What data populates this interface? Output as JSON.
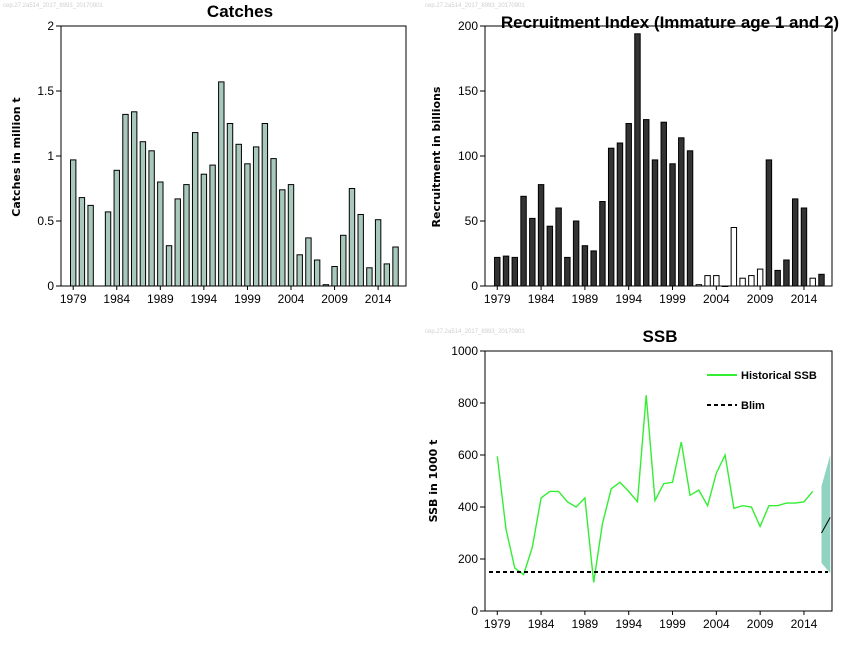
{
  "watermark": "cep.27.2a514_2017_8993_20170901",
  "colors": {
    "catch_bar": "#a8c8bc",
    "recruit_bar": "#333333",
    "ssb_line": "#33ee33",
    "ssb_band": "#8fd3c0",
    "blim_line": "#000000"
  },
  "chart_data": [
    {
      "type": "bar",
      "title": "Catches",
      "xlabel": "",
      "ylabel": "Catches in million t",
      "ylim": [
        0,
        2
      ],
      "yticks": [
        "0",
        "0.5",
        "1",
        "1.5",
        "2"
      ],
      "xtick_labels": [
        "1979",
        "1984",
        "1989",
        "1994",
        "1999",
        "2004",
        "2009",
        "2014"
      ],
      "x": [
        1979,
        1980,
        1981,
        1983,
        1984,
        1985,
        1986,
        1987,
        1988,
        1989,
        1990,
        1991,
        1992,
        1993,
        1994,
        1995,
        1996,
        1997,
        1998,
        1999,
        2000,
        2001,
        2002,
        2003,
        2004,
        2005,
        2006,
        2007,
        2008,
        2009,
        2010,
        2011,
        2012,
        2013,
        2014,
        2015,
        2016
      ],
      "values": [
        0.97,
        0.68,
        0.62,
        0.57,
        0.89,
        1.32,
        1.34,
        1.11,
        1.04,
        0.8,
        0.31,
        0.67,
        0.78,
        1.18,
        0.86,
        0.93,
        1.57,
        1.25,
        1.09,
        0.94,
        1.07,
        1.25,
        0.98,
        0.74,
        0.78,
        0.24,
        0.37,
        0.2,
        0.01,
        0.15,
        0.39,
        0.75,
        0.55,
        0.14,
        0.51,
        0.17,
        0.3
      ]
    },
    {
      "type": "bar",
      "title": "Recruitment Index (Immature age 1 and 2)",
      "xlabel": "",
      "ylabel": "Recruitment in billions",
      "ylim": [
        0,
        200
      ],
      "yticks": [
        "0",
        "50",
        "100",
        "150",
        "200"
      ],
      "xtick_labels": [
        "1979",
        "1984",
        "1989",
        "1994",
        "1999",
        "2004",
        "2009",
        "2014"
      ],
      "x": [
        1979,
        1980,
        1981,
        1982,
        1983,
        1984,
        1985,
        1986,
        1987,
        1988,
        1989,
        1990,
        1991,
        1992,
        1993,
        1994,
        1995,
        1996,
        1997,
        1998,
        1999,
        2000,
        2001,
        2002,
        2003,
        2004,
        2005,
        2006,
        2007,
        2008,
        2009,
        2010,
        2011,
        2012,
        2013,
        2014,
        2015,
        2016
      ],
      "values": [
        22,
        23,
        22,
        69,
        52,
        78,
        46,
        60,
        22,
        50,
        31,
        27,
        65,
        106,
        110,
        125,
        194,
        128,
        97,
        126,
        94,
        114,
        104,
        1,
        8,
        8,
        0,
        45,
        6,
        8,
        13,
        97,
        12,
        20,
        67,
        60,
        6,
        9
      ],
      "filled": [
        true,
        true,
        true,
        true,
        true,
        true,
        true,
        true,
        true,
        true,
        true,
        true,
        true,
        true,
        true,
        true,
        true,
        true,
        true,
        true,
        true,
        true,
        true,
        false,
        false,
        false,
        false,
        false,
        false,
        false,
        false,
        true,
        true,
        true,
        true,
        true,
        false,
        true
      ]
    },
    {
      "type": "line",
      "title": "SSB",
      "xlabel": "",
      "ylabel": "SSB in 1000 t",
      "ylim": [
        0,
        1000
      ],
      "yticks": [
        "0",
        "200",
        "400",
        "600",
        "800",
        "1000"
      ],
      "xtick_labels": [
        "1979",
        "1984",
        "1989",
        "1994",
        "1999",
        "2004",
        "2009",
        "2014"
      ],
      "legend_position": "top-right",
      "series": [
        {
          "name": "Historical SSB",
          "x": [
            1979,
            1980,
            1981,
            1982,
            1983,
            1984,
            1985,
            1986,
            1987,
            1988,
            1989,
            1990,
            1991,
            1992,
            1993,
            1994,
            1995,
            1996,
            1997,
            1998,
            1999,
            2000,
            2001,
            2002,
            2003,
            2004,
            2005,
            2006,
            2007,
            2008,
            2009,
            2010,
            2011,
            2012,
            2013,
            2014,
            2015
          ],
          "values": [
            595,
            315,
            165,
            140,
            245,
            435,
            460,
            460,
            420,
            400,
            435,
            110,
            335,
            470,
            495,
            460,
            420,
            830,
            425,
            490,
            495,
            650,
            445,
            465,
            405,
            530,
            600,
            395,
            405,
            400,
            325,
            405,
            405,
            415,
            415,
            420,
            460
          ]
        },
        {
          "name": "Blim",
          "value": 150
        }
      ],
      "projection": {
        "x": [
          2016,
          2017
        ],
        "center": [
          300,
          360
        ],
        "low": [
          185,
          145
        ],
        "high": [
          480,
          600
        ]
      }
    }
  ]
}
